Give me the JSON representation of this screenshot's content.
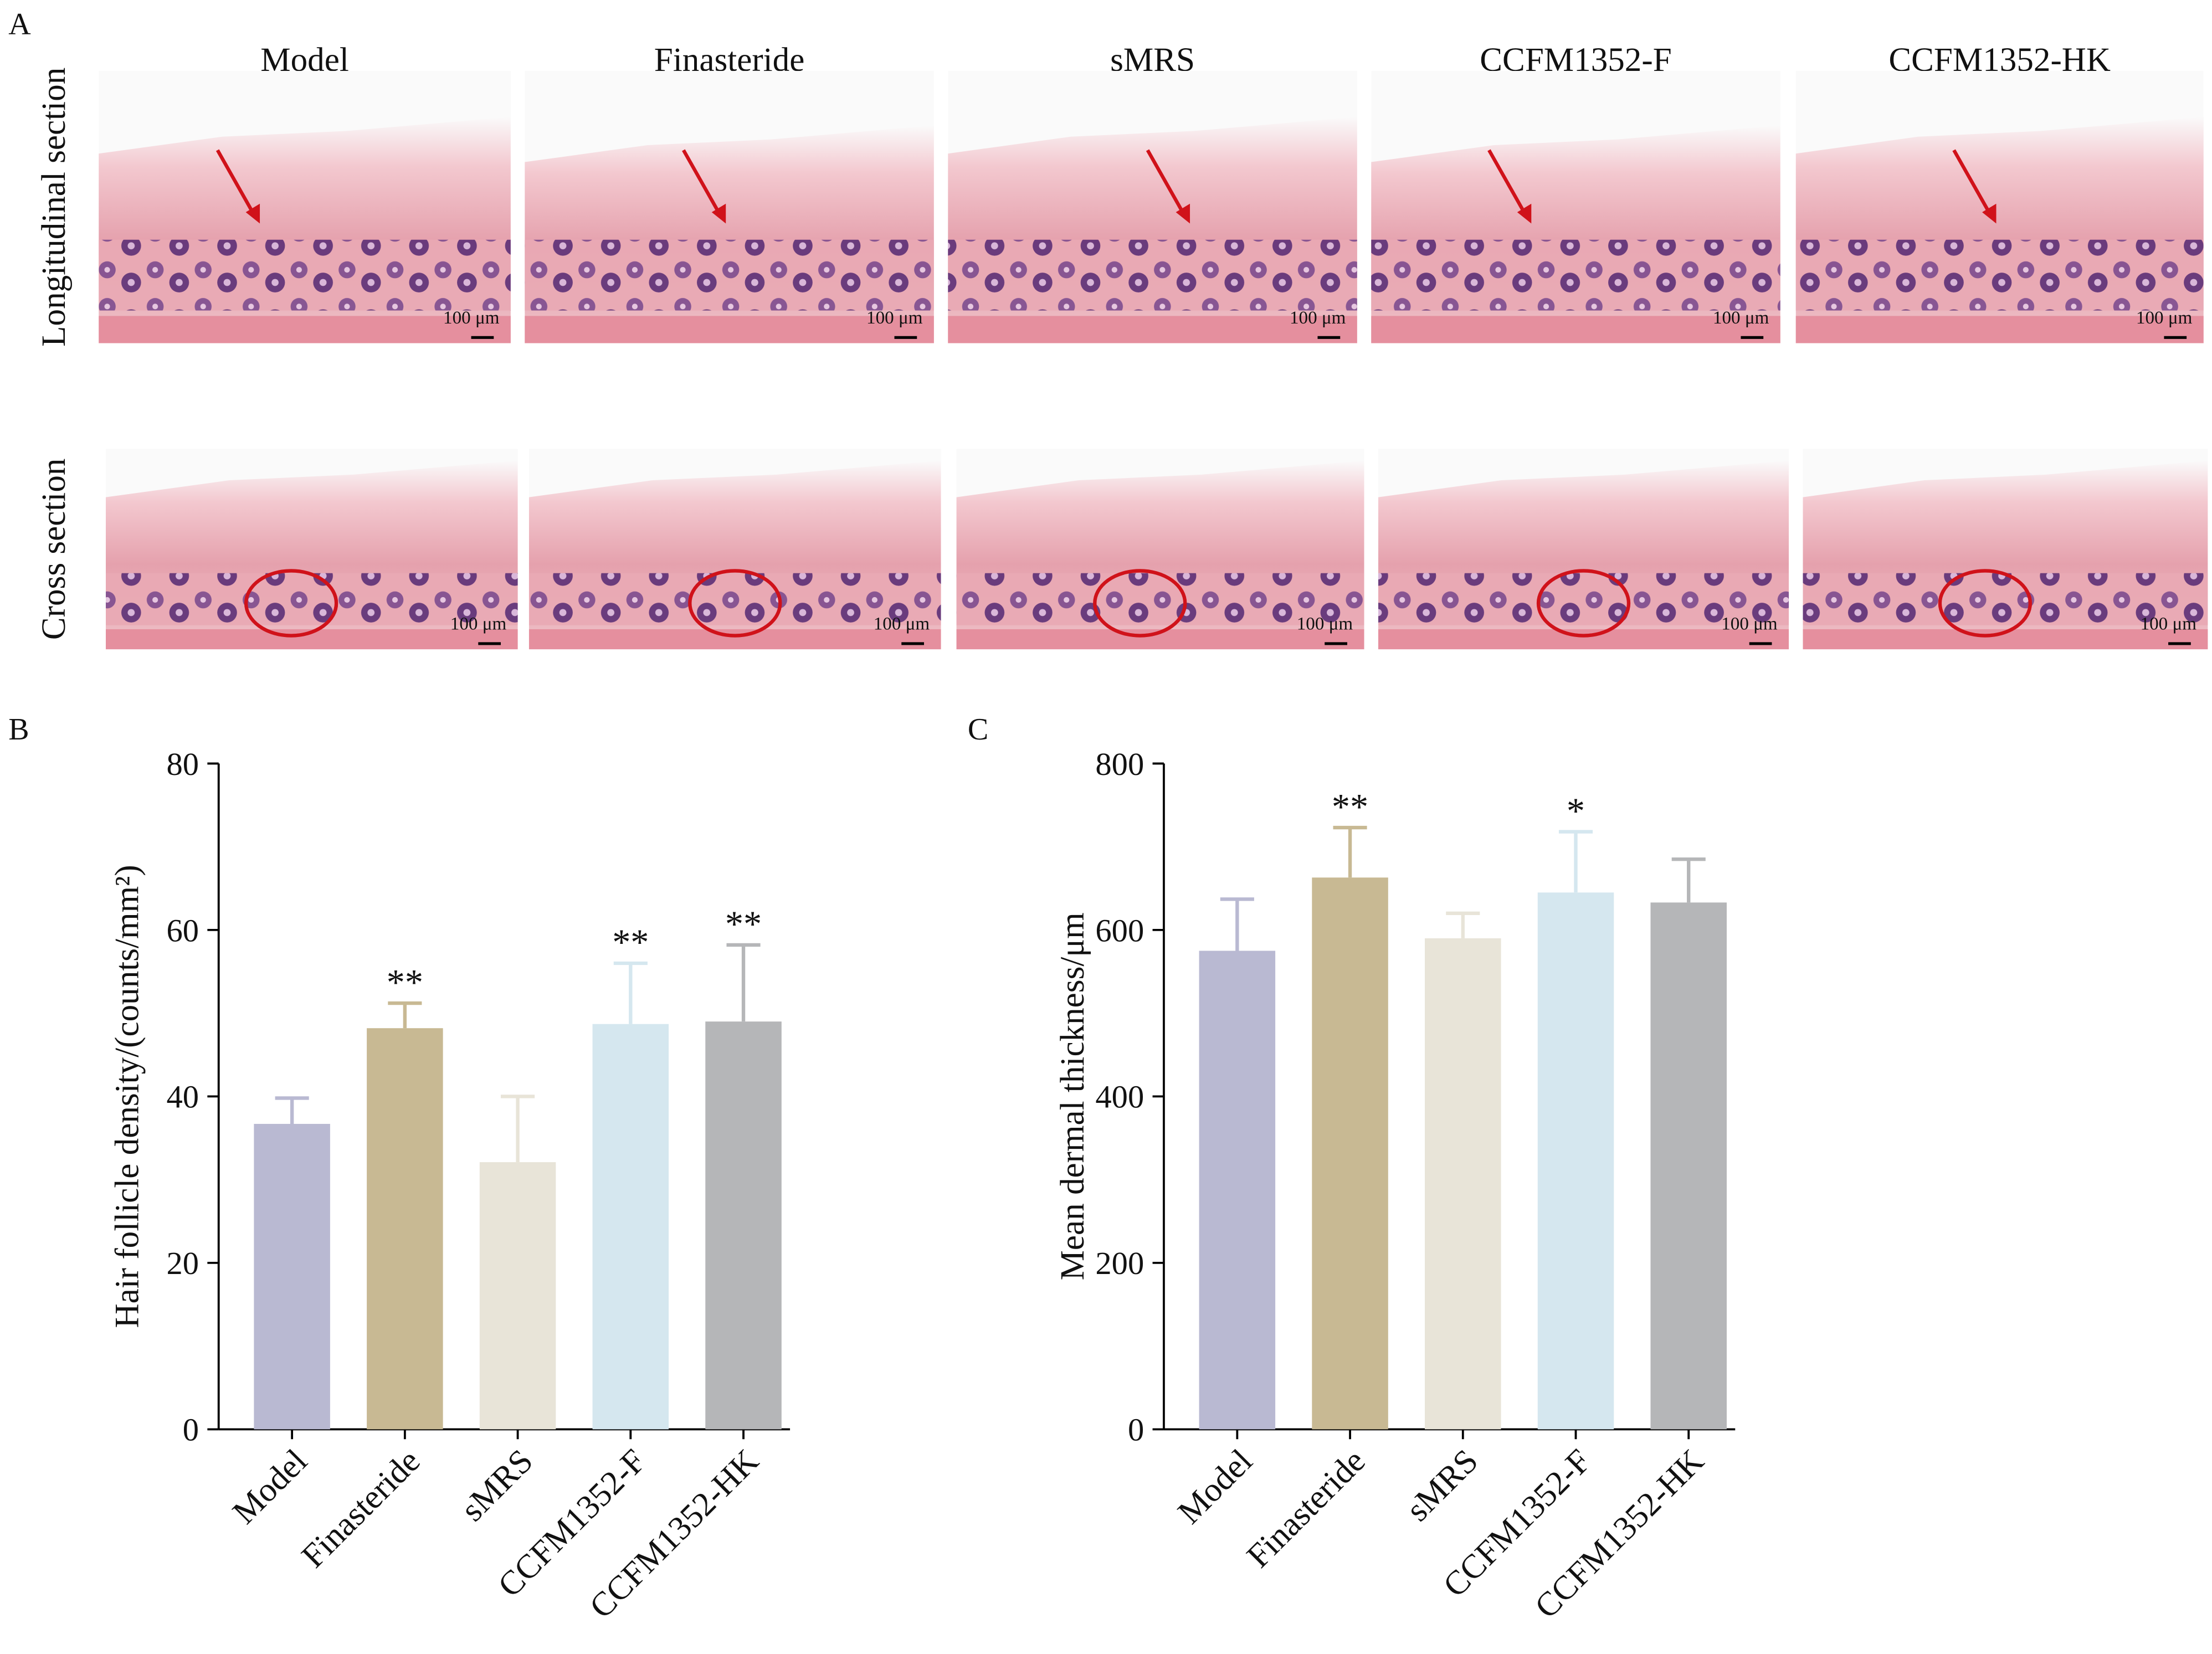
{
  "panel_a": {
    "label": "A",
    "columns": [
      "Model",
      "Finasteride",
      "sMRS",
      "CCFM1352-F",
      "CCFM1352-HK"
    ],
    "rows": [
      "Longitudinal section",
      "Cross section"
    ],
    "scale_bar": "100 μm"
  },
  "chart_data": [
    {
      "type": "bar",
      "panel": "B",
      "ylabel": "Hair follicle density/(counts/mm²)",
      "categories": [
        "Model",
        "Finasteride",
        "sMRS",
        "CCFM1352-F",
        "CCFM1352-HK"
      ],
      "values": [
        36.7,
        48.2,
        32.1,
        48.7,
        49.0
      ],
      "errors": [
        3.1,
        3.0,
        7.9,
        7.3,
        9.2
      ],
      "annotations": [
        null,
        "**",
        null,
        "**",
        "**"
      ],
      "colors": [
        "#b9b9d2",
        "#c8b993",
        "#e8e4d8",
        "#d5e7ef",
        "#b5b6b8"
      ],
      "ylim": [
        0,
        80
      ],
      "yticks": [
        0,
        20,
        40,
        60,
        80
      ]
    },
    {
      "type": "bar",
      "panel": "C",
      "ylabel": "Mean dermal thickness/μm",
      "categories": [
        "Model",
        "Finasteride",
        "sMRS",
        "CCFM1352-F",
        "CCFM1352-HK"
      ],
      "values": [
        575,
        663,
        590,
        645,
        633
      ],
      "errors": [
        62,
        60,
        30,
        73,
        52
      ],
      "annotations": [
        null,
        "**",
        null,
        "*",
        null
      ],
      "colors": [
        "#b9b9d2",
        "#c8b993",
        "#e8e4d8",
        "#d5e7ef",
        "#b5b6b8"
      ],
      "ylim": [
        0,
        800
      ],
      "yticks": [
        0,
        200,
        400,
        600,
        800
      ]
    }
  ]
}
